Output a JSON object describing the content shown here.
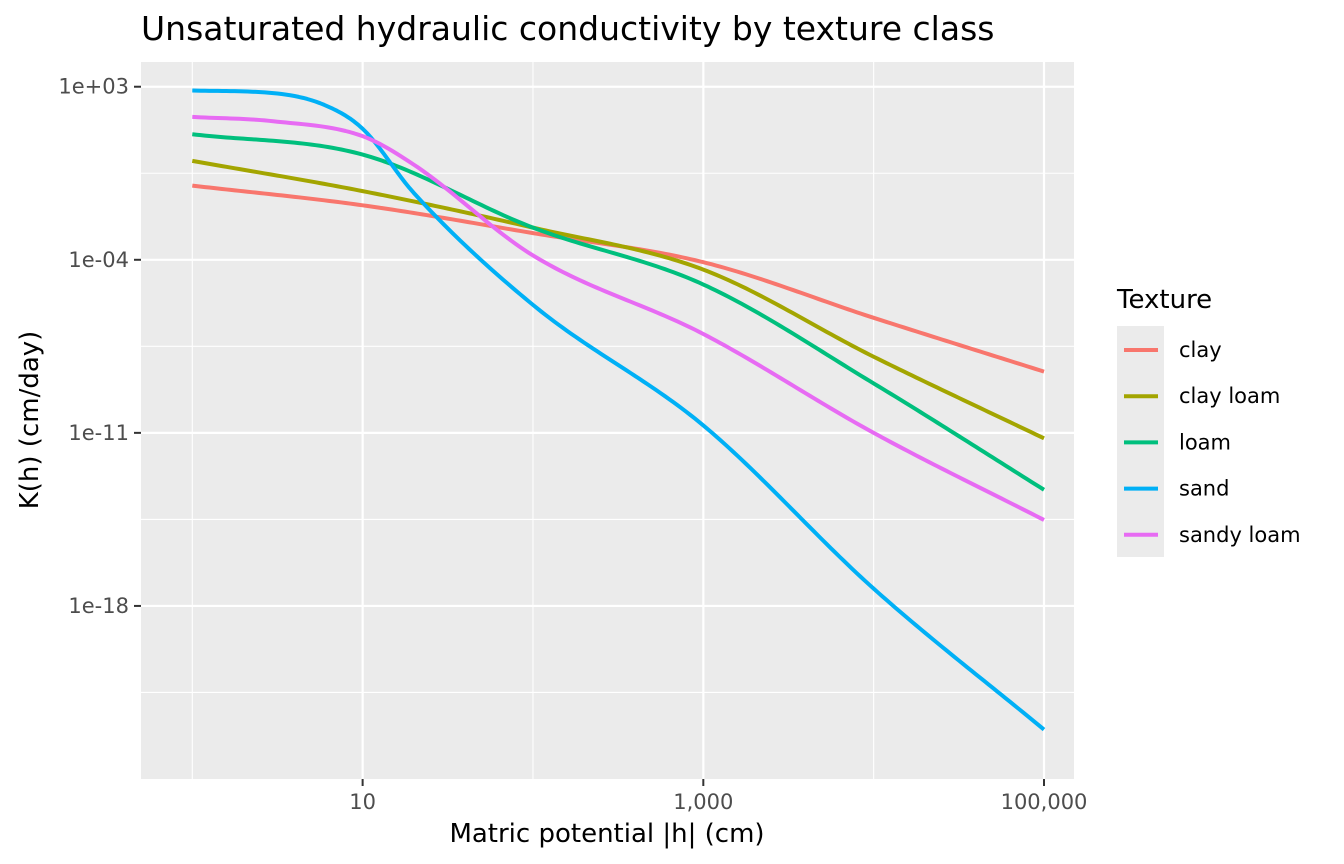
{
  "chart_data": {
    "type": "line",
    "title": "Unsaturated hydraulic conductivity by texture class",
    "xlabel": "Matric potential |h| (cm)",
    "ylabel": "K(h) (cm/day)",
    "x_scale": "log10",
    "y_scale": "log10",
    "x_range": [
      0.5,
      150000
    ],
    "y_range": [
      1e-25,
      10000.0
    ],
    "x_ticks": [
      10,
      1000,
      100000
    ],
    "x_tick_labels": [
      "10",
      "1,000",
      "100,000"
    ],
    "y_ticks": [
      1000.0,
      0.0001,
      1e-11,
      1e-18
    ],
    "y_tick_labels": [
      "1e+03",
      "1e-04",
      "1e-11",
      "1e-18"
    ],
    "grid": true,
    "legend_title": "Texture",
    "legend_position": "right",
    "series": [
      {
        "name": "clay",
        "color": "#F8766D",
        "x": [
          1,
          10,
          100,
          1000,
          10000,
          100000
        ],
        "y": [
          0.1,
          0.016,
          0.0012,
          8e-05,
          4.5e-07,
          3e-09
        ]
      },
      {
        "name": "clay loam",
        "color": "#A3A500",
        "x": [
          1,
          10,
          100,
          1000,
          10000,
          100000
        ],
        "y": [
          1,
          0.06,
          0.002,
          4e-05,
          1.2e-08,
          6e-12
        ]
      },
      {
        "name": "loam",
        "color": "#00BF7D",
        "x": [
          1,
          10,
          100,
          1000,
          10000,
          100000
        ],
        "y": [
          12,
          1.8,
          0.002,
          1e-05,
          1e-09,
          5e-14
        ]
      },
      {
        "name": "sand",
        "color": "#00B0F6",
        "x": [
          1,
          3,
          6,
          10,
          20,
          100,
          1000,
          10000,
          100000
        ],
        "y": [
          700,
          550,
          180,
          20,
          0.05,
          1.5e-06,
          2e-11,
          5e-18,
          1e-23
        ]
      },
      {
        "name": "sandy loam",
        "color": "#E76BF3",
        "x": [
          1,
          3,
          10,
          20,
          100,
          1000,
          10000,
          100000
        ],
        "y": [
          60,
          40,
          10,
          0.7,
          0.00015,
          1e-07,
          1e-11,
          3e-15
        ]
      }
    ]
  }
}
